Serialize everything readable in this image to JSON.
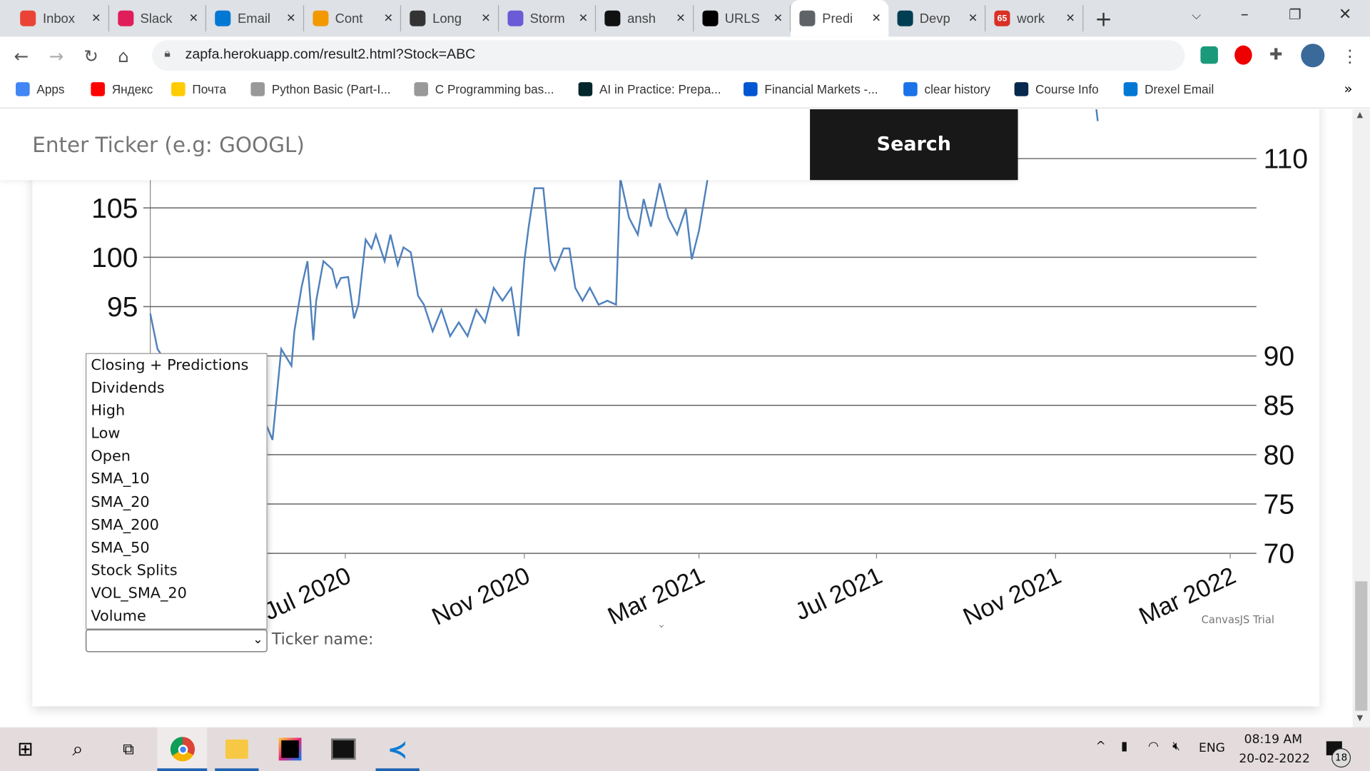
{
  "browser": {
    "tabs": [
      {
        "label": "Inbox",
        "icon": "gmail-icon",
        "color": "#ea4335"
      },
      {
        "label": "Slack",
        "icon": "slack-icon",
        "color": "#e01e5a"
      },
      {
        "label": "Email",
        "icon": "outlook-icon",
        "color": "#0078d4"
      },
      {
        "label": "Cont",
        "icon": "pencil-icon",
        "color": "#f29900"
      },
      {
        "label": "Long",
        "icon": "code-icon",
        "color": "#333333"
      },
      {
        "label": "Storm",
        "icon": "storm-icon",
        "color": "#6b5bd6"
      },
      {
        "label": "ansh",
        "icon": "github-icon",
        "color": "#111111"
      },
      {
        "label": "URLS",
        "icon": "urls-icon",
        "color": "#000000"
      },
      {
        "label": "Predi",
        "icon": "globe-icon",
        "color": "#5f6368",
        "active": true
      },
      {
        "label": "Devp",
        "icon": "devpost-icon",
        "color": "#003e54"
      },
      {
        "label": "work",
        "icon": "badge-65-icon",
        "color": "#d93025",
        "badge": "65"
      }
    ],
    "url": "zapfa.herokuapp.com/result2.html?Stock=ABC",
    "bookmarks": [
      {
        "label": "Apps",
        "icon": "apps-grid-icon",
        "color": "#4285f4"
      },
      {
        "label": "Яндекс",
        "icon": "yandex-icon",
        "color": "#ff0000"
      },
      {
        "label": "Почта",
        "icon": "mail-icon",
        "color": "#ffcc00"
      },
      {
        "label": "Python Basic (Part-I...",
        "icon": "w3r-icon",
        "color": "#999999"
      },
      {
        "label": "C Programming bas...",
        "icon": "w3r-icon",
        "color": "#999999"
      },
      {
        "label": "AI in Practice: Prepa...",
        "icon": "edx-icon",
        "color": "#02262b"
      },
      {
        "label": "Financial Markets -...",
        "icon": "coursera-icon",
        "color": "#0056d2"
      },
      {
        "label": "clear history",
        "icon": "gear-icon",
        "color": "#1a73e8"
      },
      {
        "label": "Course Info",
        "icon": "dragon-icon",
        "color": "#07294d"
      },
      {
        "label": "Drexel Email",
        "icon": "outlook-icon",
        "color": "#0078d4"
      }
    ]
  },
  "search": {
    "placeholder": "Enter Ticker (e.g: GOOGL)",
    "button": "Search"
  },
  "dropdown": {
    "options": [
      "Closing + Predictions",
      "Dividends",
      "High",
      "Low",
      "Open",
      "SMA_10",
      "SMA_20",
      "SMA_200",
      "SMA_50",
      "Stock Splits",
      "VOL_SMA_20",
      "Volume"
    ],
    "selected": ""
  },
  "ticker_label": "Ticker name:",
  "watermark": "CanvasJS Trial",
  "chart_data": {
    "type": "line",
    "title": "",
    "xlabel": "",
    "ylabel": "",
    "ylim": [
      70,
      115
    ],
    "xlim": [
      "2020-02-18",
      "2022-03-19"
    ],
    "y_ticks": [
      70,
      75,
      80,
      85,
      90,
      95,
      100,
      105,
      110
    ],
    "x_ticks": [
      {
        "date": "2020-07-01",
        "label": "Jul 2020"
      },
      {
        "date": "2020-11-01",
        "label": "Nov 2020"
      },
      {
        "date": "2021-03-01",
        "label": "Mar 2021"
      },
      {
        "date": "2021-07-01",
        "label": "Jul 2021"
      },
      {
        "date": "2021-11-01",
        "label": "Nov 2021"
      },
      {
        "date": "2022-03-01",
        "label": "Mar 2022"
      }
    ],
    "grid": true,
    "color": "#4f81bd",
    "series": [
      {
        "points": [
          [
            "2020-02-18",
            94.3
          ],
          [
            "2020-02-23",
            90.7
          ],
          [
            "2020-03-06",
            88
          ],
          [
            "2020-03-30",
            84
          ],
          [
            "2020-04-23",
            86
          ],
          [
            "2020-05-05",
            84
          ],
          [
            "2020-05-12",
            81.5
          ],
          [
            "2020-05-18",
            90.7
          ],
          [
            "2020-05-25",
            89
          ],
          [
            "2020-05-27",
            92.5
          ],
          [
            "2020-06-01",
            97
          ],
          [
            "2020-06-05",
            99.6
          ],
          [
            "2020-06-09",
            91.6
          ],
          [
            "2020-06-11",
            95.6
          ],
          [
            "2020-06-16",
            99.6
          ],
          [
            "2020-06-22",
            98.8
          ],
          [
            "2020-06-25",
            97
          ],
          [
            "2020-06-28",
            97.9
          ],
          [
            "2020-07-03",
            98
          ],
          [
            "2020-07-07",
            93.8
          ],
          [
            "2020-07-10",
            95.2
          ],
          [
            "2020-07-15",
            101.8
          ],
          [
            "2020-07-19",
            100.9
          ],
          [
            "2020-07-22",
            102.3
          ],
          [
            "2020-07-28",
            99.6
          ],
          [
            "2020-08-01",
            102.3
          ],
          [
            "2020-08-06",
            99.2
          ],
          [
            "2020-08-10",
            101
          ],
          [
            "2020-08-15",
            100.5
          ],
          [
            "2020-08-20",
            96.1
          ],
          [
            "2020-08-24",
            95.2
          ],
          [
            "2020-08-30",
            92.5
          ],
          [
            "2020-09-05",
            94.7
          ],
          [
            "2020-09-11",
            92
          ],
          [
            "2020-09-17",
            93.4
          ],
          [
            "2020-09-23",
            92
          ],
          [
            "2020-09-29",
            94.7
          ],
          [
            "2020-10-05",
            93.4
          ],
          [
            "2020-10-11",
            96.9
          ],
          [
            "2020-10-17",
            95.6
          ],
          [
            "2020-10-23",
            96.9
          ],
          [
            "2020-10-28",
            92
          ],
          [
            "2020-11-01",
            99.6
          ],
          [
            "2020-11-04",
            103.1
          ],
          [
            "2020-11-08",
            107
          ],
          [
            "2020-11-14",
            107
          ],
          [
            "2020-11-19",
            99.6
          ],
          [
            "2020-11-22",
            98.7
          ],
          [
            "2020-11-28",
            100.9
          ],
          [
            "2020-12-02",
            100.9
          ],
          [
            "2020-12-06",
            96.9
          ],
          [
            "2020-12-11",
            95.6
          ],
          [
            "2020-12-16",
            96.9
          ],
          [
            "2020-12-22",
            95.2
          ],
          [
            "2020-12-28",
            95.6
          ],
          [
            "2021-01-03",
            95.2
          ],
          [
            "2021-01-06",
            108
          ],
          [
            "2021-01-12",
            104
          ],
          [
            "2021-01-18",
            102.3
          ],
          [
            "2021-01-22",
            105.9
          ],
          [
            "2021-01-27",
            103.1
          ],
          [
            "2021-02-02",
            107.5
          ],
          [
            "2021-02-08",
            104
          ],
          [
            "2021-02-14",
            102.3
          ],
          [
            "2021-02-20",
            104.9
          ],
          [
            "2021-02-24",
            99.8
          ],
          [
            "2021-03-01",
            102.7
          ],
          [
            "2021-03-07",
            108
          ]
        ]
      },
      {
        "points": [
          [
            "2021-11-29",
            116
          ],
          [
            "2021-11-30",
            113.8
          ]
        ]
      }
    ]
  },
  "taskbar": {
    "apps": [
      "windows-start-icon",
      "search-icon",
      "task-view-icon",
      "chrome-icon",
      "file-explorer-icon",
      "intellij-icon",
      "terminal-icon",
      "vscode-icon"
    ],
    "language": "ENG",
    "time": "08:19 AM",
    "date": "20-02-2022",
    "notifications": "18"
  }
}
